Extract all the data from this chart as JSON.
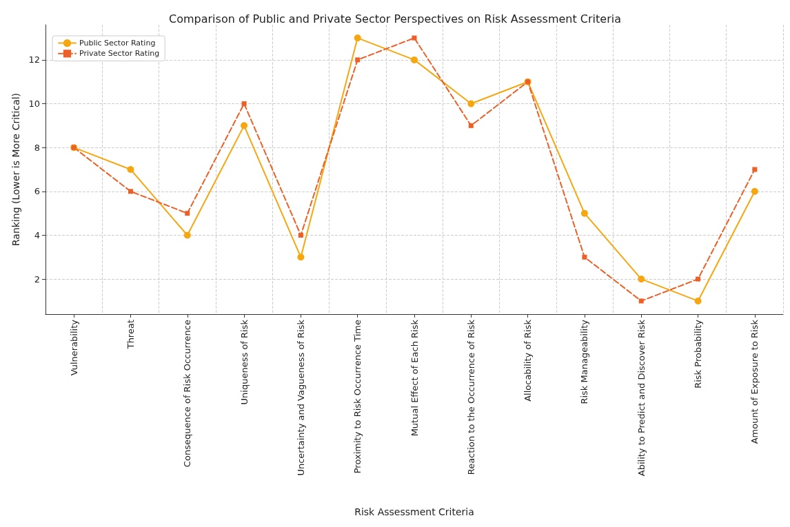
{
  "chart_data": {
    "type": "line",
    "title": "Comparison of Public and Private Sector Perspectives on Risk Assessment Criteria",
    "xlabel": "Risk Assessment Criteria",
    "ylabel": "Ranking (Lower is More Critical)",
    "categories": [
      "Vulnerability",
      "Threat",
      "Consequence of Risk Occurrence",
      "Uniqueness of Risk",
      "Uncertainty and Vagueness of Risk",
      "Proximity to Risk Occurrence Time",
      "Mutual Effect of Each Risk",
      "Reaction to the Occurrence of Risk",
      "Allocability of Risk",
      "Risk Manageability",
      "Ability to Predict and Discover Risk",
      "Risk Probability",
      "Amount of Exposure to Risk"
    ],
    "series": [
      {
        "name": "Public Sector Rating",
        "color": "#f6a70f",
        "marker": "circle",
        "line_style": "solid",
        "values": [
          8,
          7,
          4,
          9,
          3,
          13,
          12,
          10,
          11,
          5,
          2,
          1,
          6
        ]
      },
      {
        "name": "Private Sector Rating",
        "color": "#ec5f26",
        "marker": "square",
        "line_style": "dashed",
        "values": [
          8,
          6,
          5,
          10,
          4,
          12,
          13,
          9,
          11,
          3,
          1,
          2,
          7
        ]
      }
    ],
    "ylim": [
      0.4,
      13.6
    ],
    "yticks": [
      2,
      4,
      6,
      8,
      10,
      12
    ],
    "grid": true,
    "legend": "top left"
  }
}
